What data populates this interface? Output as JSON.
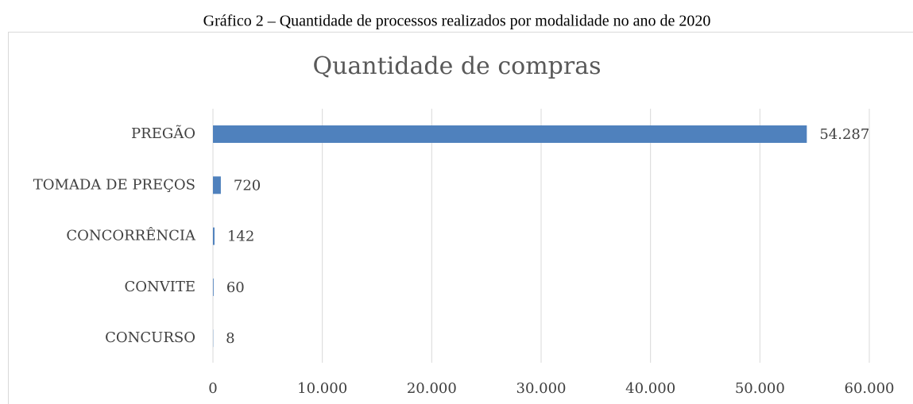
{
  "caption": "Gráfico 2 – Quantidade de processos realizados por modalidade no ano de 2020",
  "chart_data": {
    "type": "hbar",
    "title": "Quantidade de compras",
    "categories": [
      "PREGÃO",
      "TOMADA DE PREÇOS",
      "CONCORRÊNCIA",
      "CONVITE",
      "CONCURSO"
    ],
    "values": [
      54287,
      720,
      142,
      60,
      8
    ],
    "value_labels": [
      "54.287",
      "720",
      "142",
      "60",
      "8"
    ],
    "color": "#4f81bd",
    "xlim": [
      0,
      60000
    ],
    "xticks": [
      0,
      {
        "value": 10000,
        "label": "10.000"
      },
      {
        "value": 20000,
        "label": "20.000"
      },
      {
        "value": 30000,
        "label": "30.000"
      },
      {
        "value": 40000,
        "label": "40.000"
      },
      {
        "value": 50000,
        "label": "50.000"
      },
      {
        "value": 60000,
        "label": "60.000"
      }
    ],
    "grid": true
  }
}
